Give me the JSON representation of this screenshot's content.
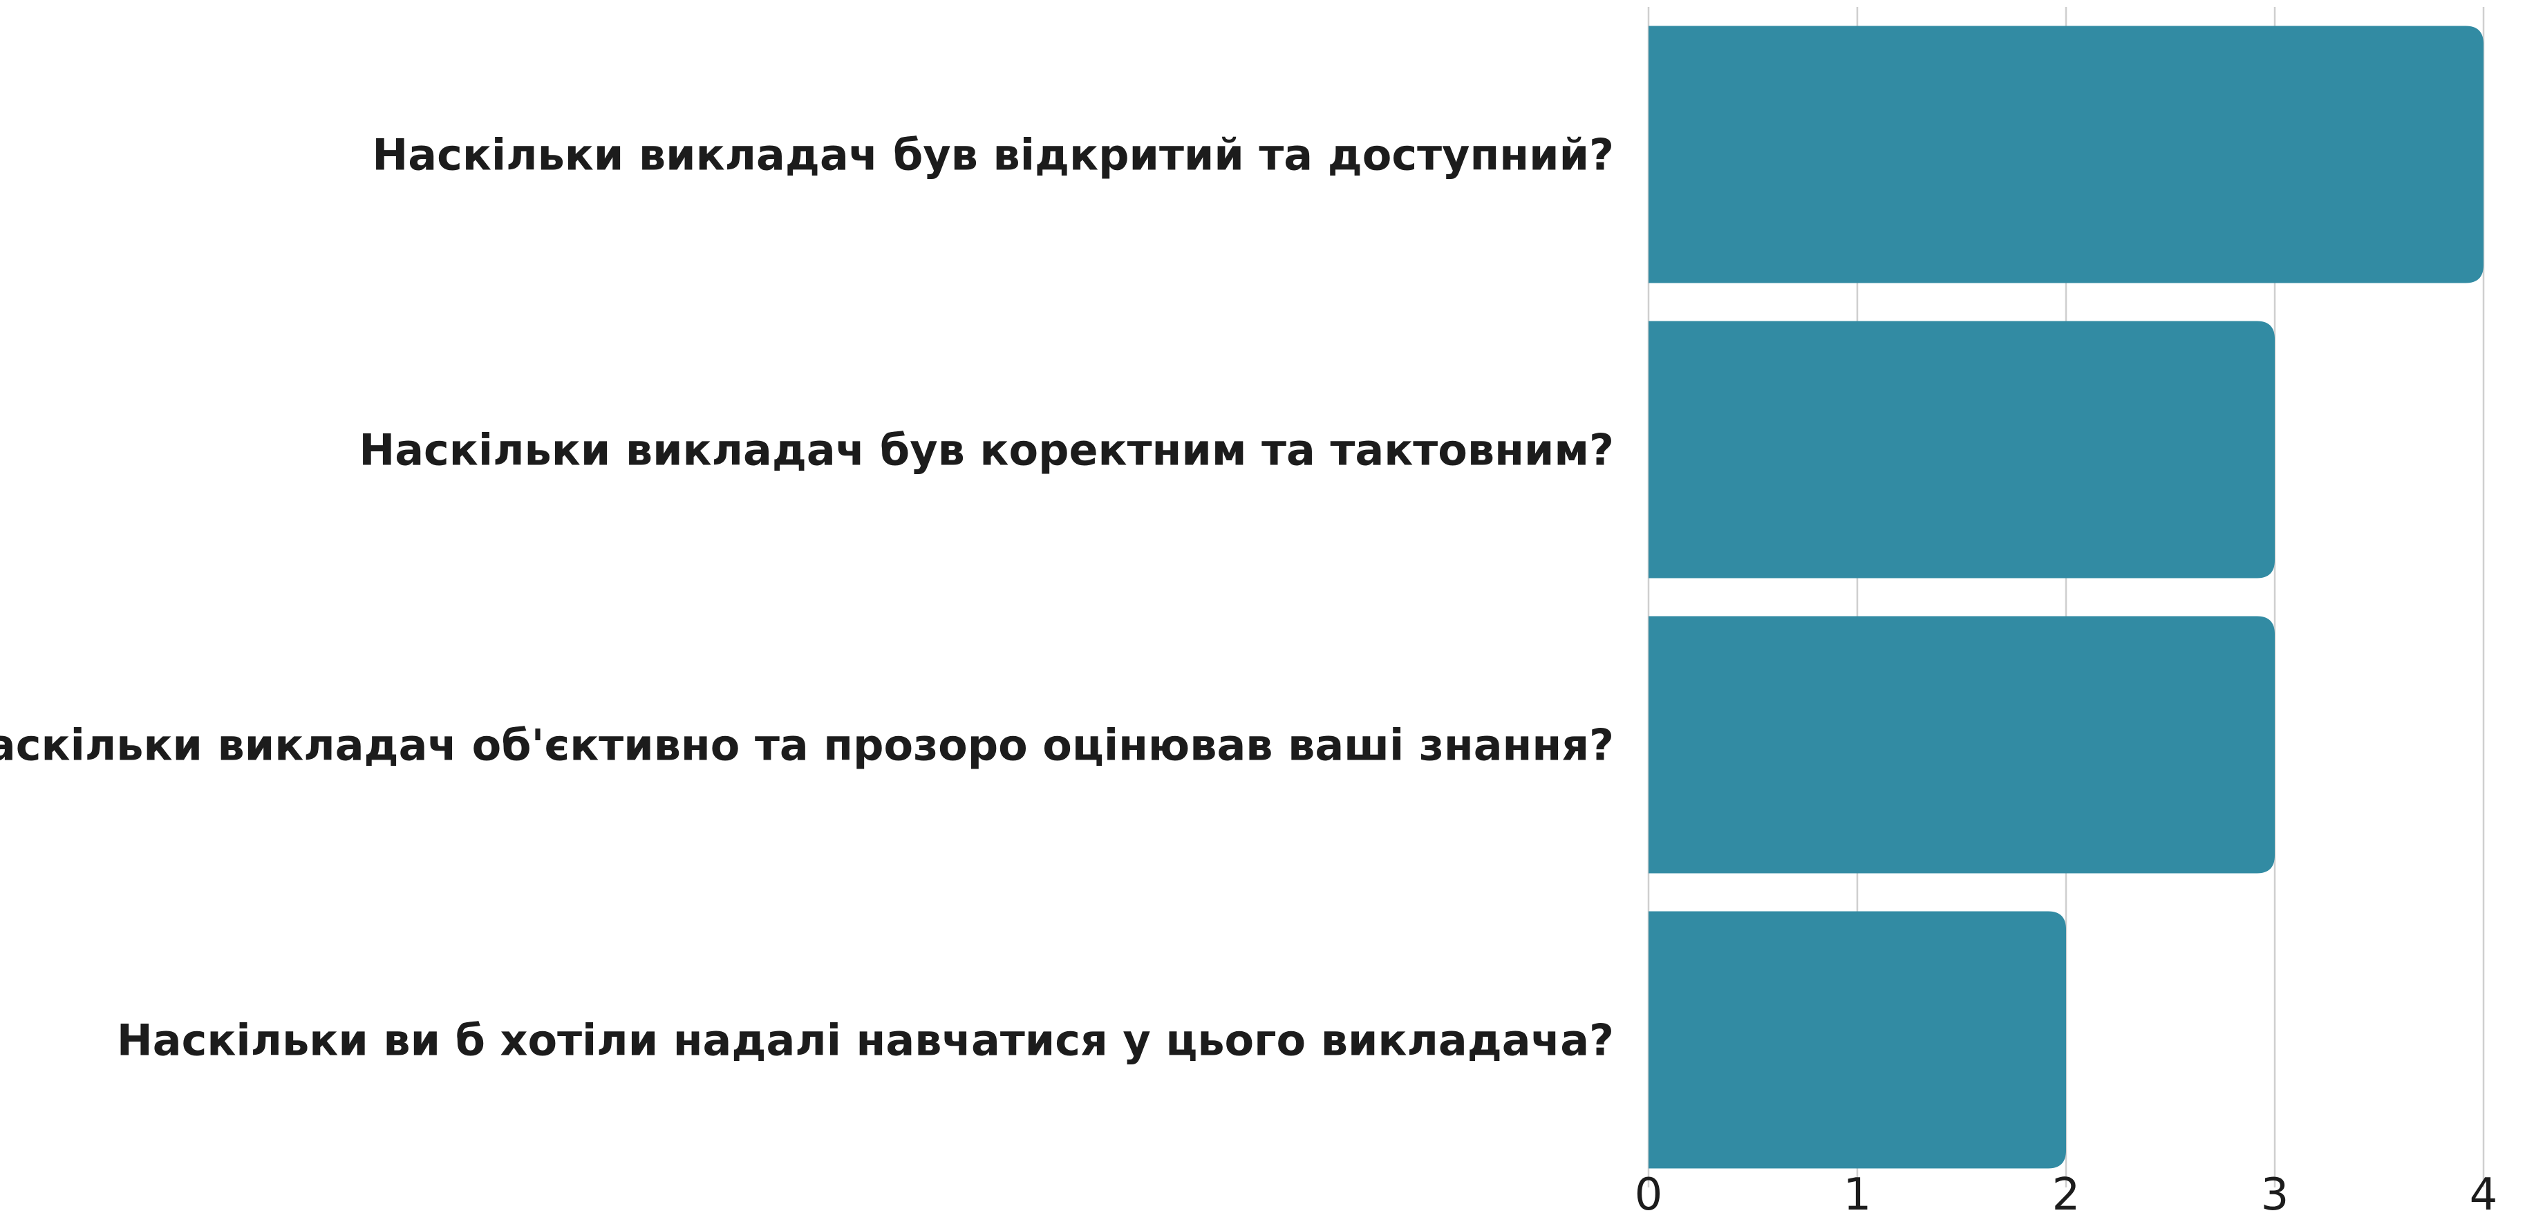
{
  "chart_data": {
    "type": "bar",
    "orientation": "horizontal",
    "categories": [
      "Наскільки викладач був відкритий та доступний?",
      "Наскільки викладач був коректним та тактовним?",
      "Наскільки викладач об'єктивно та прозоро оцінював ваші знання?",
      "Наскільки ви б хотіли надалі навчатися у цього викладача?"
    ],
    "values": [
      4,
      3,
      3,
      2
    ],
    "xlim": [
      0,
      4
    ],
    "x_ticks": [
      "0",
      "1",
      "2",
      "3",
      "4"
    ],
    "grid": true,
    "legend": "none",
    "bar_color": "#328ba3"
  }
}
